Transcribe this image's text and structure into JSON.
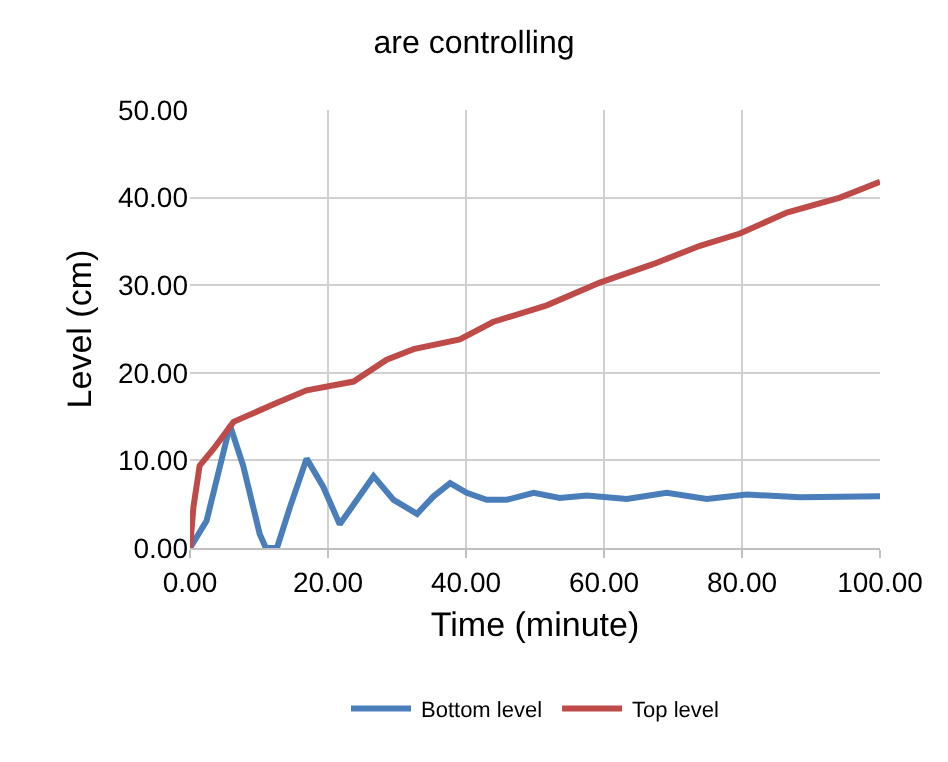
{
  "chart_data": {
    "type": "line",
    "title": "are controlling",
    "xlabel": "Time (minute)",
    "ylabel": "Level (cm)",
    "xlim": [
      0,
      100
    ],
    "xticks": [
      {
        "value": 0,
        "label": "0.00"
      },
      {
        "value": 20,
        "label": "20.00"
      },
      {
        "value": 40,
        "label": "40.00"
      },
      {
        "value": 60,
        "label": "60.00"
      },
      {
        "value": 80,
        "label": "80.00"
      },
      {
        "value": 100,
        "label": "100.00"
      }
    ],
    "ylim": [
      0,
      50
    ],
    "yticks": [
      {
        "value": 0,
        "label": "0.00"
      },
      {
        "value": 10,
        "label": "10.00"
      },
      {
        "value": 20,
        "label": "20.00"
      },
      {
        "value": 30,
        "label": "30.00"
      },
      {
        "value": 40,
        "label": "40.00"
      },
      {
        "value": 50,
        "label": "50.00"
      }
    ],
    "grid": true,
    "legend": "bottom",
    "marker": "none",
    "line_style": "solid",
    "series": [
      {
        "name": "Bottom level",
        "color": "#4a7ebb",
        "x": [
          0,
          2.4,
          5.8,
          7.7,
          10.1,
          11,
          12.6,
          14.5,
          16.9,
          19.3,
          21.7,
          24.2,
          26.6,
          29.5,
          32.9,
          35.3,
          37.7,
          40.1,
          43,
          45.9,
          49.8,
          53.6,
          57.5,
          63.3,
          69.1,
          74.9,
          80.7,
          88.4,
          100
        ],
        "values": [
          0,
          3.1,
          14,
          9.4,
          1.6,
          0,
          0,
          4.7,
          10.2,
          7,
          2.7,
          5.5,
          8.2,
          5.5,
          3.9,
          5.9,
          7.4,
          6.3,
          5.5,
          5.5,
          6.3,
          5.7,
          6,
          5.6,
          6.3,
          5.6,
          6.1,
          5.8,
          5.9
        ]
      },
      {
        "name": "Top level",
        "color": "#be4b48",
        "x": [
          0,
          0.5,
          1.4,
          3.4,
          6.3,
          12.1,
          16.9,
          23.7,
          28.5,
          32.4,
          39.1,
          43.9,
          51.7,
          59.4,
          67.1,
          73.9,
          79.7,
          86.5,
          94.2,
          100
        ],
        "values": [
          0,
          4.7,
          9.4,
          11.3,
          14.4,
          16.4,
          18,
          19,
          21.5,
          22.7,
          23.8,
          25.8,
          27.7,
          30.3,
          32.4,
          34.5,
          35.9,
          38.3,
          40,
          41.8
        ]
      }
    ]
  }
}
